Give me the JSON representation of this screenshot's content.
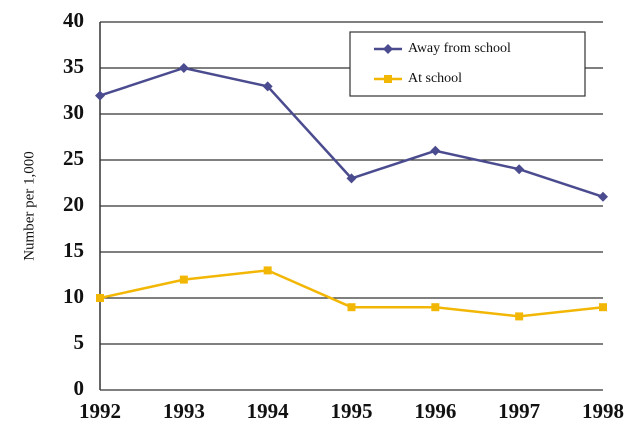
{
  "chart_data": {
    "type": "line",
    "y_label": "Number per 1,000",
    "categories": [
      "1992",
      "1993",
      "1994",
      "1995",
      "1996",
      "1997",
      "1998"
    ],
    "series": [
      {
        "name": "Away from school",
        "color": "#4b4b8f",
        "marker": "diamond",
        "values": [
          32,
          35,
          33,
          23,
          26,
          24,
          21
        ]
      },
      {
        "name": "At school",
        "color": "#f2b705",
        "marker": "square",
        "values": [
          10,
          12,
          13,
          9,
          9,
          8,
          9
        ]
      }
    ],
    "ylim": [
      0,
      40
    ],
    "yticks": [
      0,
      5,
      10,
      15,
      20,
      25,
      30,
      35,
      40
    ],
    "grid": true,
    "legend": "top-right"
  }
}
